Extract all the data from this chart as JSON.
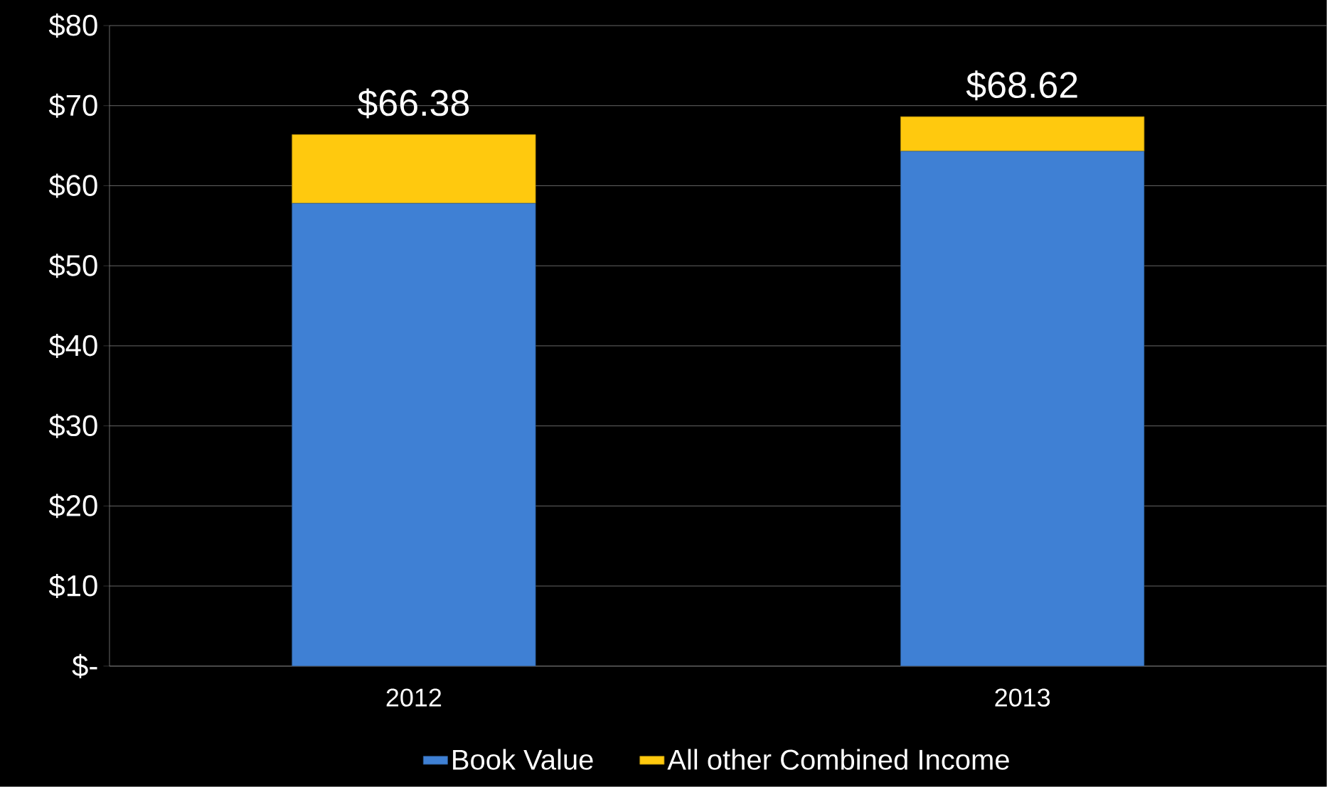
{
  "chart_data": {
    "type": "bar",
    "stacked": true,
    "categories": [
      "2012",
      "2013"
    ],
    "series": [
      {
        "name": "Book Value",
        "color": "#3f80d4",
        "values": [
          57.8,
          64.3
        ]
      },
      {
        "name": "All other Combined Income",
        "color": "#ffc90e",
        "values": [
          8.58,
          4.32
        ]
      }
    ],
    "totals": [
      "$66.38",
      "$68.62"
    ],
    "ylim": [
      0,
      80
    ],
    "yticks": [
      {
        "value": 0,
        "label": "$-"
      },
      {
        "value": 10,
        "label": "$10"
      },
      {
        "value": 20,
        "label": "$20"
      },
      {
        "value": 30,
        "label": "$30"
      },
      {
        "value": 40,
        "label": "$40"
      },
      {
        "value": 50,
        "label": "$50"
      },
      {
        "value": 60,
        "label": "$60"
      },
      {
        "value": 70,
        "label": "$70"
      },
      {
        "value": 80,
        "label": "$80"
      }
    ],
    "grid": "y",
    "legend": "bottom"
  }
}
